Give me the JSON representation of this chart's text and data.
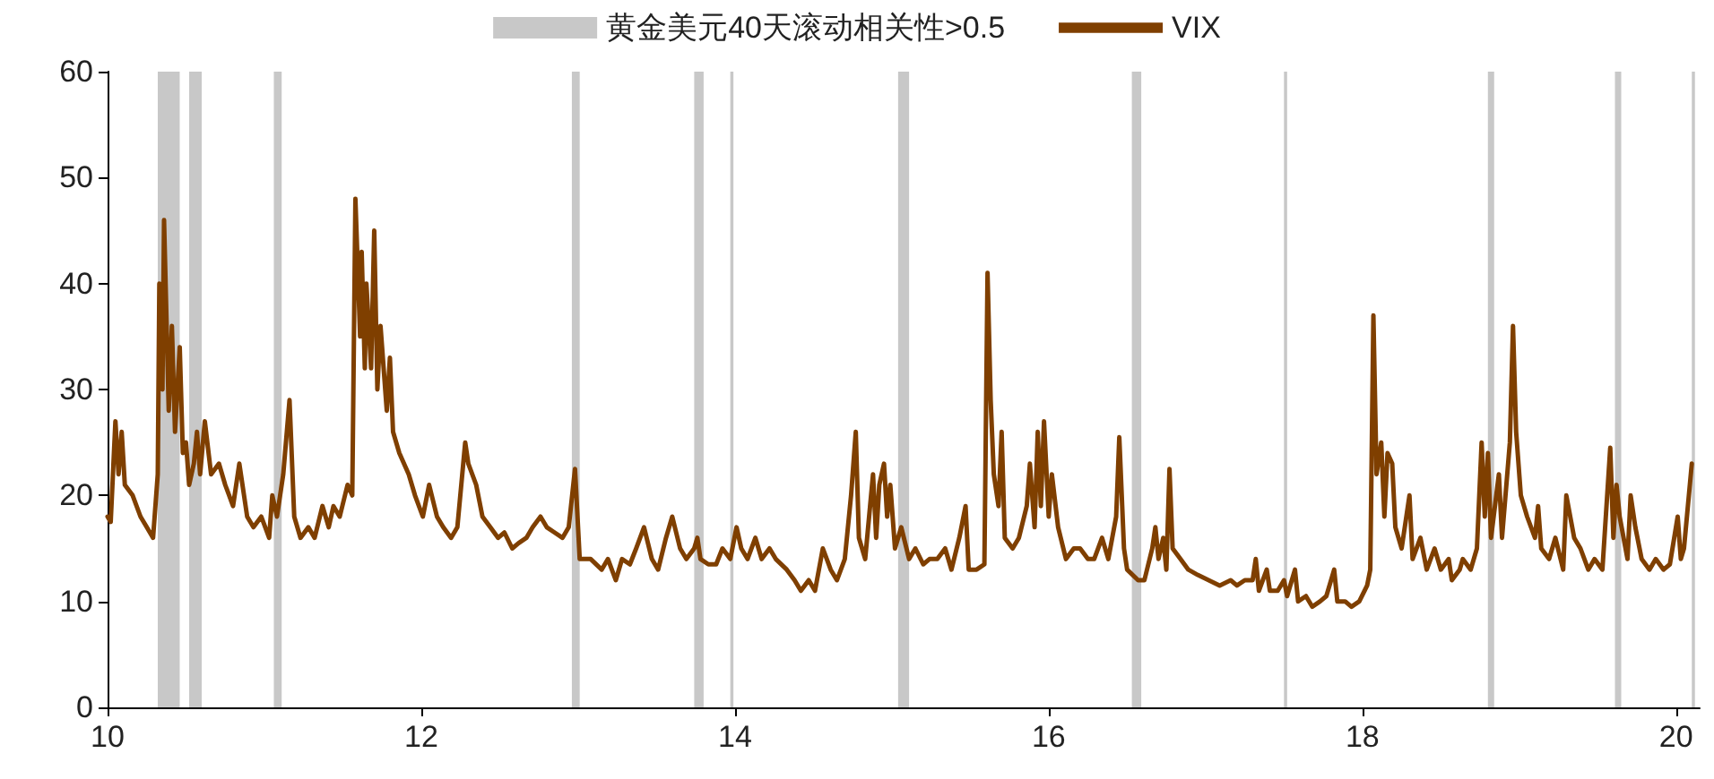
{
  "chart_data": {
    "type": "line",
    "xlim": [
      10,
      20.15
    ],
    "xticks": [
      10,
      12,
      14,
      16,
      18,
      20
    ],
    "ylim": [
      0,
      60
    ],
    "yticks": [
      0,
      10,
      20,
      30,
      40,
      50,
      60
    ],
    "grid": false,
    "legend": "top",
    "marker": "none",
    "line_style": "solid",
    "bands": [
      {
        "axis": "x",
        "from": 10.32,
        "to": 10.46,
        "label": "黄金美元40天滚动相关性>0.5",
        "color": "#c8c8c8"
      },
      {
        "axis": "x",
        "from": 10.52,
        "to": 10.6,
        "color": "#c8c8c8"
      },
      {
        "axis": "x",
        "from": 11.06,
        "to": 11.11,
        "color": "#c8c8c8"
      },
      {
        "axis": "x",
        "from": 12.96,
        "to": 13.01,
        "color": "#c8c8c8"
      },
      {
        "axis": "x",
        "from": 13.74,
        "to": 13.8,
        "color": "#c8c8c8"
      },
      {
        "axis": "x",
        "from": 13.97,
        "to": 13.99,
        "color": "#c8c8c8"
      },
      {
        "axis": "x",
        "from": 15.04,
        "to": 15.11,
        "color": "#c8c8c8"
      },
      {
        "axis": "x",
        "from": 16.53,
        "to": 16.59,
        "color": "#c8c8c8"
      },
      {
        "axis": "x",
        "from": 17.5,
        "to": 17.52,
        "color": "#c8c8c8"
      },
      {
        "axis": "x",
        "from": 18.8,
        "to": 18.84,
        "color": "#c8c8c8"
      },
      {
        "axis": "x",
        "from": 19.61,
        "to": 19.65,
        "color": "#c8c8c8"
      },
      {
        "axis": "x",
        "from": 20.1,
        "to": 20.12,
        "color": "#c8c8c8"
      }
    ],
    "series": [
      {
        "name": "VIX",
        "color": "#7f3f00",
        "x": [
          10.0,
          10.02,
          10.05,
          10.07,
          10.09,
          10.11,
          10.16,
          10.21,
          10.25,
          10.29,
          10.32,
          10.33,
          10.35,
          10.36,
          10.39,
          10.41,
          10.43,
          10.46,
          10.48,
          10.5,
          10.52,
          10.55,
          10.57,
          10.59,
          10.62,
          10.66,
          10.71,
          10.75,
          10.8,
          10.84,
          10.89,
          10.93,
          10.98,
          11.03,
          11.05,
          11.08,
          11.12,
          11.16,
          11.19,
          11.23,
          11.28,
          11.32,
          11.37,
          11.41,
          11.44,
          11.48,
          11.53,
          11.56,
          11.58,
          11.61,
          11.62,
          11.64,
          11.65,
          11.68,
          11.7,
          11.72,
          11.74,
          11.78,
          11.8,
          11.82,
          11.86,
          11.92,
          11.96,
          12.01,
          12.05,
          12.1,
          12.14,
          12.19,
          12.23,
          12.28,
          12.3,
          12.35,
          12.39,
          12.44,
          12.49,
          12.53,
          12.58,
          12.62,
          12.67,
          12.71,
          12.76,
          12.8,
          12.85,
          12.9,
          12.94,
          12.98,
          13.01,
          13.08,
          13.15,
          13.19,
          13.24,
          13.28,
          13.33,
          13.37,
          13.42,
          13.47,
          13.51,
          13.56,
          13.6,
          13.65,
          13.69,
          13.74,
          13.76,
          13.78,
          13.83,
          13.88,
          13.92,
          13.97,
          14.01,
          14.04,
          14.08,
          14.13,
          14.17,
          14.22,
          14.26,
          14.33,
          14.38,
          14.42,
          14.47,
          14.51,
          14.56,
          14.61,
          14.65,
          14.7,
          14.74,
          14.77,
          14.79,
          14.83,
          14.88,
          14.9,
          14.92,
          14.95,
          14.97,
          14.99,
          15.02,
          15.06,
          15.11,
          15.15,
          15.2,
          15.24,
          15.29,
          15.34,
          15.38,
          15.43,
          15.47,
          15.49,
          15.54,
          15.59,
          15.61,
          15.63,
          15.65,
          15.68,
          15.7,
          15.72,
          15.77,
          15.81,
          15.86,
          15.88,
          15.91,
          15.93,
          15.95,
          15.97,
          16.0,
          16.02,
          16.06,
          16.11,
          16.16,
          16.2,
          16.25,
          16.29,
          16.34,
          16.38,
          16.43,
          16.45,
          16.48,
          16.5,
          16.57,
          16.61,
          16.66,
          16.68,
          16.7,
          16.73,
          16.75,
          16.77,
          16.79,
          16.84,
          16.89,
          16.95,
          17.02,
          17.09,
          17.16,
          17.2,
          17.25,
          17.3,
          17.32,
          17.34,
          17.39,
          17.41,
          17.46,
          17.5,
          17.52,
          17.57,
          17.59,
          17.64,
          17.68,
          17.73,
          17.77,
          17.82,
          17.84,
          17.89,
          17.93,
          17.98,
          18.03,
          18.05,
          18.07,
          18.09,
          18.12,
          18.14,
          18.16,
          18.19,
          18.21,
          18.25,
          18.3,
          18.32,
          18.37,
          18.41,
          18.46,
          18.5,
          18.55,
          18.57,
          18.62,
          18.64,
          18.69,
          18.73,
          18.76,
          18.78,
          18.8,
          18.82,
          18.87,
          18.89,
          18.94,
          18.96,
          18.98,
          19.01,
          19.05,
          19.1,
          19.12,
          19.14,
          19.19,
          19.23,
          19.28,
          19.3,
          19.35,
          19.39,
          19.44,
          19.48,
          19.53,
          19.58,
          19.6,
          19.62,
          19.64,
          19.69,
          19.71,
          19.74,
          19.78,
          19.83,
          19.87,
          19.92,
          19.96,
          20.01,
          20.03,
          20.05,
          20.1
        ],
        "values": [
          18,
          17.5,
          27,
          22,
          26,
          21,
          20,
          18,
          17,
          16,
          22,
          40,
          30,
          46,
          28,
          36,
          26,
          34,
          24,
          25,
          21,
          23,
          26,
          22,
          27,
          22,
          23,
          21,
          19,
          23,
          18,
          17,
          18,
          16,
          20,
          18,
          22,
          29,
          18,
          16,
          17,
          16,
          19,
          17,
          19,
          18,
          21,
          20,
          48,
          35,
          43,
          32,
          40,
          32,
          45,
          30,
          36,
          28,
          33,
          26,
          24,
          22,
          20,
          18,
          21,
          18,
          17,
          16,
          17,
          25,
          23,
          21,
          18,
          17,
          16,
          16.5,
          15,
          15.5,
          16,
          17,
          18,
          17,
          16.5,
          16,
          17,
          22.5,
          14,
          14,
          13,
          14,
          12,
          14,
          13.5,
          15,
          17,
          14,
          13,
          16,
          18,
          15,
          14,
          15,
          16,
          14,
          13.5,
          13.5,
          15,
          14,
          17,
          15,
          14,
          16,
          14,
          15,
          14,
          13,
          12,
          11,
          12,
          11,
          15,
          13,
          12,
          14,
          20,
          26,
          16,
          14,
          22,
          16,
          21,
          23,
          18,
          21,
          15,
          17,
          14,
          15,
          13.5,
          14,
          14,
          15,
          13,
          16,
          19,
          13,
          13,
          13.5,
          41,
          29,
          22,
          19,
          26,
          16,
          15,
          16,
          19,
          23,
          17,
          26,
          19,
          27,
          18,
          22,
          17,
          14,
          15,
          15,
          14,
          14,
          16,
          14,
          18,
          25.5,
          15,
          13,
          12,
          12,
          15,
          17,
          14,
          16,
          13,
          22.5,
          15,
          14,
          13,
          12.5,
          12,
          11.5,
          12,
          11.5,
          12,
          12,
          14,
          11,
          13,
          11,
          11,
          12,
          10.5,
          13,
          10,
          10.5,
          9.5,
          10,
          10.5,
          13,
          10,
          10,
          9.5,
          10,
          11.5,
          13,
          37,
          22,
          25,
          18,
          24,
          23,
          17,
          15,
          20,
          14,
          16,
          13,
          15,
          13,
          14,
          12,
          13,
          14,
          13,
          15,
          25,
          18,
          24,
          16,
          22,
          16,
          25,
          36,
          26,
          20,
          18,
          16,
          19,
          15,
          14,
          16,
          13,
          20,
          16,
          15,
          13,
          14,
          13,
          24.5,
          16,
          21,
          18,
          14,
          20,
          17,
          14,
          13,
          14,
          13,
          13.5,
          18,
          14,
          15,
          23
        ]
      }
    ]
  }
}
